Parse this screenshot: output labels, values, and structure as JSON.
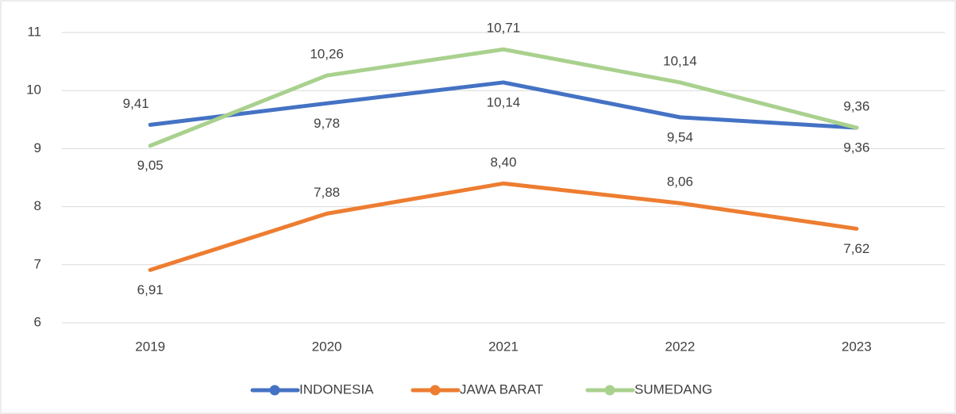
{
  "chart_data": {
    "type": "line",
    "categories": [
      "2019",
      "2020",
      "2021",
      "2022",
      "2023"
    ],
    "series": [
      {
        "name": "INDONESIA",
        "color": "#4472c4",
        "values": [
          9.41,
          9.78,
          10.14,
          9.54,
          9.36
        ],
        "value_labels": [
          "9,41",
          "9,78",
          "10,14",
          "9,54",
          "9,36"
        ]
      },
      {
        "name": "JAWA BARAT",
        "color": "#ed7d31",
        "values": [
          6.91,
          7.88,
          8.4,
          8.06,
          7.62
        ],
        "value_labels": [
          "6,91",
          "7,88",
          "8,40",
          "8,06",
          "7,62"
        ]
      },
      {
        "name": "SUMEDANG",
        "color": "#a9d18e",
        "values": [
          9.05,
          10.26,
          10.71,
          10.14,
          9.36
        ],
        "value_labels": [
          "9,05",
          "10,26",
          "10,71",
          "10,14",
          "9,36"
        ]
      }
    ],
    "ylim": [
      6,
      11
    ],
    "yticks": [
      6,
      7,
      8,
      9,
      10,
      11
    ],
    "grid": true,
    "legend": "bottom"
  }
}
